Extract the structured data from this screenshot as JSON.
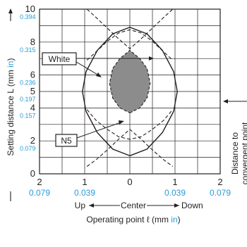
{
  "chart_data": {
    "type": "line",
    "xlabel": {
      "prefix": "Operating point ℓ (mm ",
      "unit": "in",
      "suffix": ")"
    },
    "ylabel": {
      "prefix": "Setting distance L (mm ",
      "unit": "in",
      "suffix": ")"
    },
    "xlim": [
      -2,
      2
    ],
    "ylim": [
      0,
      10
    ],
    "x_ticks": [
      {
        "v": -2,
        "mm": "2",
        "in": "0.079"
      },
      {
        "v": -1,
        "mm": "1",
        "in": "0.039"
      },
      {
        "v": 0,
        "mm": "0",
        "in": ""
      },
      {
        "v": 1,
        "mm": "1",
        "in": "0.039"
      },
      {
        "v": 2,
        "mm": "2",
        "in": "0.079"
      }
    ],
    "y_ticks": [
      {
        "v": 0,
        "mm": "0",
        "in": ""
      },
      {
        "v": 2,
        "mm": "2",
        "in": "0.079"
      },
      {
        "v": 4,
        "mm": "4",
        "in": "0.157"
      },
      {
        "v": 5,
        "mm": "5",
        "in": "0.197"
      },
      {
        "v": 6,
        "mm": "6",
        "in": "0.236"
      },
      {
        "v": 8,
        "mm": "8",
        "in": "0.315"
      },
      {
        "v": 10,
        "mm": "10",
        "in": "0.394"
      }
    ],
    "direction": {
      "left": "Up",
      "center": "Center",
      "right": "Down"
    },
    "series": [
      {
        "name": "White",
        "style": "solid",
        "x": [
          0,
          0.38,
          0.72,
          0.97,
          1.05,
          0.97,
          0.72,
          0.38,
          0,
          -0.38,
          -0.72,
          -0.97,
          -1.05,
          -0.97,
          -0.72,
          -0.38,
          0
        ],
        "y": [
          1.1,
          1.5,
          2.5,
          3.8,
          5.0,
          6.2,
          7.5,
          8.5,
          8.9,
          8.5,
          7.5,
          6.2,
          5.0,
          3.8,
          2.5,
          1.5,
          1.1
        ]
      },
      {
        "name": "N5",
        "style": "filled-dashed",
        "x": [
          0,
          0.22,
          0.38,
          0.45,
          0.38,
          0.22,
          0,
          -0.22,
          -0.38,
          -0.45,
          -0.38,
          -0.22,
          0
        ],
        "y": [
          3.7,
          4.0,
          4.6,
          5.5,
          6.4,
          7.0,
          7.5,
          7.0,
          6.4,
          5.5,
          4.6,
          4.0,
          3.7
        ]
      }
    ],
    "guide_curves": [
      {
        "x": [
          -0.95,
          -0.75,
          -0.5,
          -0.25,
          0,
          0.25,
          0.5,
          0.75,
          0.95
        ],
        "y": [
          10.0,
          9.5,
          8.85,
          8.2,
          7.6,
          8.2,
          8.85,
          9.5,
          10.0
        ]
      },
      {
        "x": [
          -0.95,
          -0.75,
          -0.5,
          -0.25,
          0,
          0.25,
          0.5,
          0.75,
          0.95
        ],
        "y": [
          6.9,
          7.4,
          8.05,
          8.55,
          8.75,
          8.55,
          8.05,
          7.4,
          6.9
        ]
      },
      {
        "x": [
          -0.95,
          -0.75,
          -0.5,
          -0.25,
          0,
          0.25,
          0.5,
          0.75,
          0.95
        ],
        "y": [
          0.45,
          0.85,
          1.45,
          2.1,
          2.7,
          2.1,
          1.45,
          0.85,
          0.45
        ]
      },
      {
        "x": [
          -0.95,
          -0.75,
          -0.5,
          -0.25,
          0,
          0.25,
          0.5,
          0.75,
          0.95
        ],
        "y": [
          3.9,
          3.25,
          2.7,
          2.25,
          2.1,
          2.25,
          2.7,
          3.25,
          3.9
        ]
      }
    ],
    "annotations": [
      {
        "text": "White",
        "target": "White"
      },
      {
        "text": "N5",
        "target": "N5"
      },
      {
        "text_line1": "Distance to",
        "text_line2": "convergent point",
        "y": 5
      }
    ],
    "grid": true
  }
}
